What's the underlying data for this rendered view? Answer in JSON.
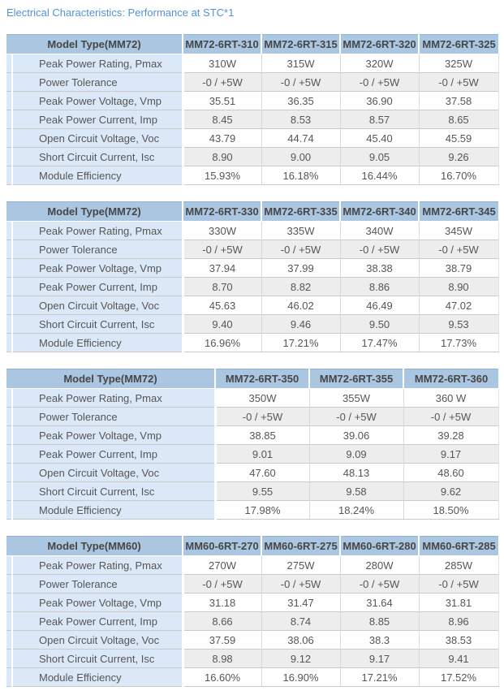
{
  "page": {
    "title": "Electrical Characteristics: Performance at STC*1"
  },
  "colors": {
    "title_text": "#5292d7",
    "header_bg": "#aac6e1",
    "label_column_bg": "#dae8f7",
    "alt_row_bg": "#ededed",
    "row_border": "#c9c9c9"
  },
  "tables": [
    {
      "model_header": "Model Type(MM72)",
      "columns": [
        "MM72-6RT-310",
        "MM72-6RT-315",
        "MM72-6RT-320",
        "MM72-6RT-325"
      ],
      "rows": [
        {
          "label": "Peak Power Rating, Pmax",
          "values": [
            "310W",
            "315W",
            "320W",
            "325W"
          ]
        },
        {
          "label": "Power Tolerance",
          "values": [
            "-0 / +5W",
            "-0 / +5W",
            "-0 / +5W",
            "-0 / +5W"
          ]
        },
        {
          "label": "Peak Power Voltage, Vmp",
          "values": [
            "35.51",
            "36.35",
            "36.90",
            "37.58"
          ]
        },
        {
          "label": "Peak Power Current, Imp",
          "values": [
            "8.45",
            "8.53",
            "8.57",
            "8.65"
          ]
        },
        {
          "label": "Open Circuit Voltage, Voc",
          "values": [
            "43.79",
            "44.74",
            "45.40",
            "45.59"
          ]
        },
        {
          "label": "Short Circuit Current, Isc",
          "values": [
            "8.90",
            "9.00",
            "9.05",
            "9.26"
          ]
        },
        {
          "label": "Module Efficiency",
          "values": [
            "15.93%",
            "16.18%",
            "16.44%",
            "16.70%"
          ]
        }
      ]
    },
    {
      "model_header": "Model Type(MM72)",
      "columns": [
        "MM72-6RT-330",
        "MM72-6RT-335",
        "MM72-6RT-340",
        "MM72-6RT-345"
      ],
      "rows": [
        {
          "label": "Peak Power Rating, Pmax",
          "values": [
            "330W",
            "335W",
            "340W",
            "345W"
          ]
        },
        {
          "label": "Power Tolerance",
          "values": [
            "-0 / +5W",
            "-0 / +5W",
            "-0 / +5W",
            "-0 / +5W"
          ]
        },
        {
          "label": "Peak Power Voltage, Vmp",
          "values": [
            "37.94",
            "37.99",
            "38.38",
            "38.79"
          ]
        },
        {
          "label": "Peak Power Current, Imp",
          "values": [
            "8.70",
            "8.82",
            "8.86",
            "8.90"
          ]
        },
        {
          "label": "Open Circuit Voltage, Voc",
          "values": [
            "45.63",
            "46.02",
            "46.49",
            "47.02"
          ]
        },
        {
          "label": "Short Circuit Current, Isc",
          "values": [
            "9.40",
            "9.46",
            "9.50",
            "9.53"
          ]
        },
        {
          "label": "Module Efficiency",
          "values": [
            "16.96%",
            "17.21%",
            "17.47%",
            "17.73%"
          ]
        }
      ]
    },
    {
      "model_header": "Model Type(MM72)",
      "columns": [
        "MM72-6RT-350",
        "MM72-6RT-355",
        "MM72-6RT-360"
      ],
      "rows": [
        {
          "label": "Peak Power Rating, Pmax",
          "values": [
            "350W",
            "355W",
            "360 W"
          ]
        },
        {
          "label": "Power Tolerance",
          "values": [
            "-0 / +5W",
            "-0 / +5W",
            "-0 / +5W"
          ]
        },
        {
          "label": "Peak Power Voltage, Vmp",
          "values": [
            "38.85",
            "39.06",
            "39.28"
          ]
        },
        {
          "label": "Peak Power Current, Imp",
          "values": [
            "9.01",
            "9.09",
            "9.17"
          ]
        },
        {
          "label": "Open Circuit Voltage, Voc",
          "values": [
            "47.60",
            "48.13",
            "48.60"
          ]
        },
        {
          "label": "Short Circuit Current, Isc",
          "values": [
            "9.55",
            "9.58",
            "9.62"
          ]
        },
        {
          "label": "Module Efficiency",
          "values": [
            "17.98%",
            "18.24%",
            "18.50%"
          ]
        }
      ]
    },
    {
      "model_header": "Model Type(MM60)",
      "columns": [
        "MM60-6RT-270",
        "MM60-6RT-275",
        "MM60-6RT-280",
        "MM60-6RT-285"
      ],
      "rows": [
        {
          "label": "Peak Power Rating, Pmax",
          "values": [
            "270W",
            "275W",
            "280W",
            "285W"
          ]
        },
        {
          "label": "Power Tolerance",
          "values": [
            "-0 / +5W",
            "-0 / +5W",
            "-0 / +5W",
            "-0 / +5W"
          ]
        },
        {
          "label": "Peak Power Voltage, Vmp",
          "values": [
            "31.18",
            "31.47",
            "31.64",
            "31.81"
          ]
        },
        {
          "label": "Peak Power Current, Imp",
          "values": [
            "8.66",
            "8.74",
            "8.85",
            "8.96"
          ]
        },
        {
          "label": "Open Circuit Voltage, Voc",
          "values": [
            "37.59",
            "38.06",
            "38.3",
            "38.53"
          ]
        },
        {
          "label": "Short Circuit Current, Isc",
          "values": [
            "8.98",
            "9.12",
            "9.17",
            "9.41"
          ]
        },
        {
          "label": "Module Efficiency",
          "values": [
            "16.60%",
            "16.90%",
            "17.21%",
            "17.52%"
          ]
        }
      ]
    }
  ]
}
